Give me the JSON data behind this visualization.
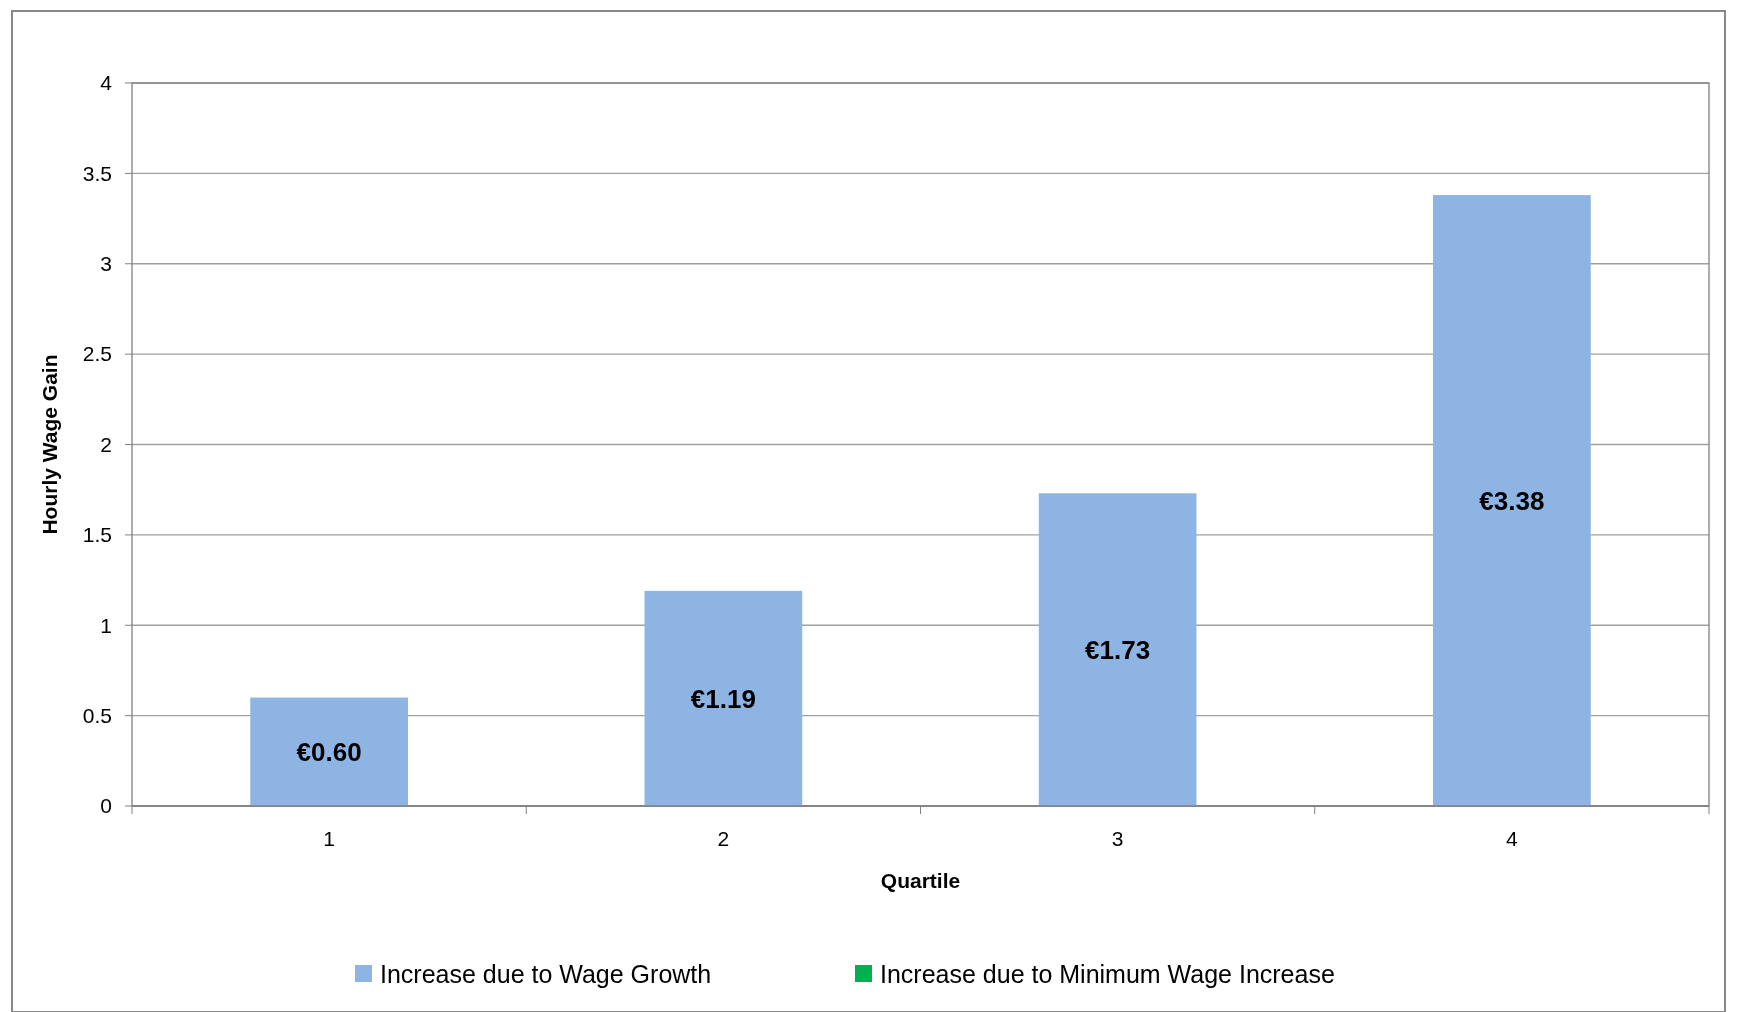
{
  "chart_data": {
    "type": "bar",
    "stacked": true,
    "xlabel": "Quartile",
    "ylabel": "Hourly Wage Gain",
    "categories": [
      "1",
      "2",
      "3",
      "4"
    ],
    "series": [
      {
        "name": "Increase due to Wage Growth",
        "color": "#8eb4e3",
        "values": [
          0.6,
          1.19,
          1.73,
          3.38
        ],
        "value_labels": [
          "€0.60",
          "€1.19",
          "€1.73",
          "€3.38"
        ]
      },
      {
        "name": "Increase due to Minimum Wage Increase",
        "color": "#00b050",
        "values": [
          null,
          null,
          null,
          null
        ]
      }
    ],
    "ylim": [
      0,
      4
    ],
    "yticks": [
      0,
      0.5,
      1,
      1.5,
      2,
      2.5,
      3,
      3.5,
      4
    ],
    "grid": "y",
    "legend": "bottom"
  }
}
